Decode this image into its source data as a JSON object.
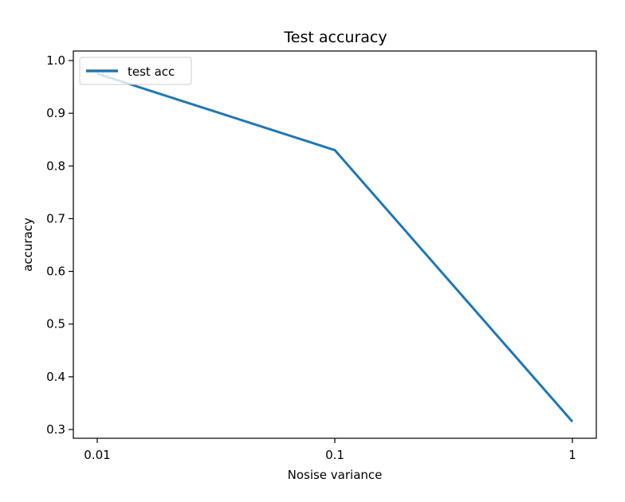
{
  "chart_data": {
    "type": "line",
    "title": "Test accuracy",
    "xlabel": "Nosise variance",
    "ylabel": "accuracy",
    "x": [
      "0.01",
      "0.1",
      "1"
    ],
    "xscale": "log",
    "x_numeric": [
      0.01,
      0.1,
      1
    ],
    "ylim": [
      0.3,
      1.0
    ],
    "yticks": [
      0.3,
      0.4,
      0.5,
      0.6,
      0.7,
      0.8,
      0.9,
      1.0
    ],
    "ytick_labels": [
      "0.3",
      "0.4",
      "0.5",
      "0.6",
      "0.7",
      "0.8",
      "0.9",
      "1.0"
    ],
    "grid": false,
    "legend_position": "top-left",
    "series": [
      {
        "name": "test acc",
        "color": "#1f77b4",
        "values": [
          0.975,
          0.83,
          0.315
        ]
      }
    ]
  }
}
